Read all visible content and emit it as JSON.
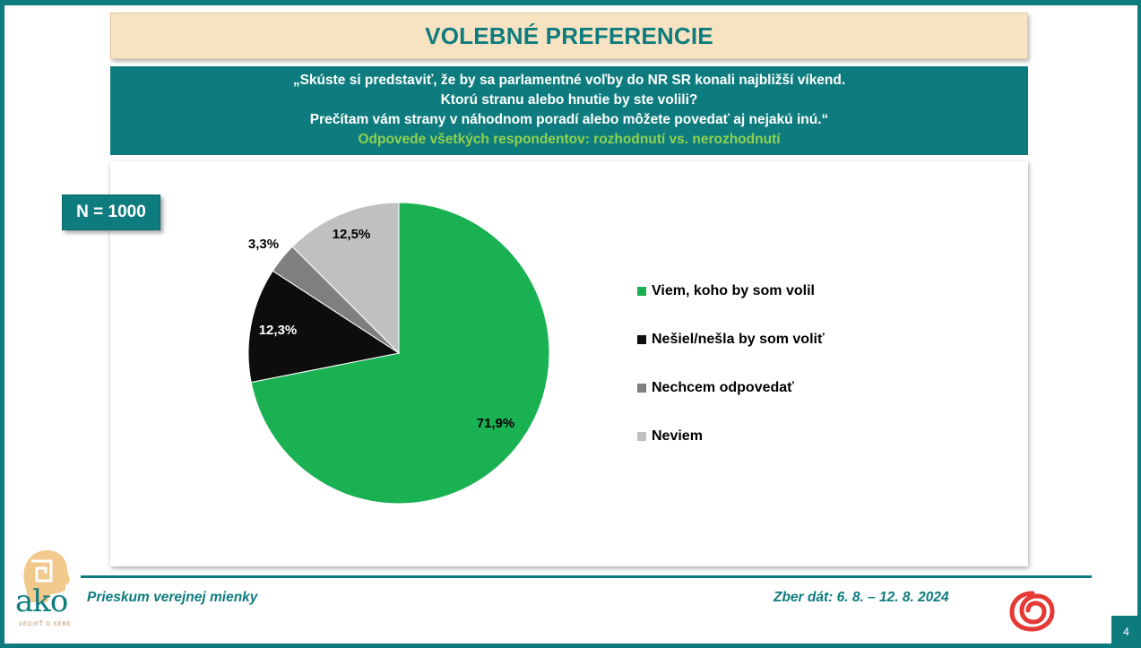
{
  "header": {
    "title": "VOLEBNÉ PREFERENCIE",
    "question_lines": [
      "„Skúste si predstaviť, že by sa parlamentné voľby do NR SR konali najbližší víkend.",
      "Ktorú stranu alebo hnutie by ste volili?",
      "Prečítam vám strany v náhodnom poradí alebo môžete povedať aj nejakú inú.“"
    ],
    "subtitle": "Odpovede všetkých respondentov: rozhodnutí vs. nerozhodnutí"
  },
  "sample": "N = 1000",
  "chart_data": {
    "type": "pie",
    "title": "",
    "slices": [
      {
        "label": "Viem, koho by som volil",
        "value": 71.9,
        "value_label": "71,9%",
        "color": "#1ab153"
      },
      {
        "label": "Nešiel/nešla by som voliť",
        "value": 12.3,
        "value_label": "12,3%",
        "color": "#0d0d0d"
      },
      {
        "label": "Nechcem odpovedať",
        "value": 3.3,
        "value_label": "3,3%",
        "color": "#7f7f7f"
      },
      {
        "label": "Neviem",
        "value": 12.5,
        "value_label": "12,5%",
        "color": "#c0c0c0"
      }
    ],
    "legend_position": "right"
  },
  "footer": {
    "survey": "Prieskum verejnej mienky",
    "date": "Zber dát: 6. 8. – 12. 8. 2024",
    "logo_text": "ako",
    "logo_tagline": "VEDIEŤ O SEBE",
    "page_number": "4",
    "brand_color": "#0e7c7e"
  }
}
